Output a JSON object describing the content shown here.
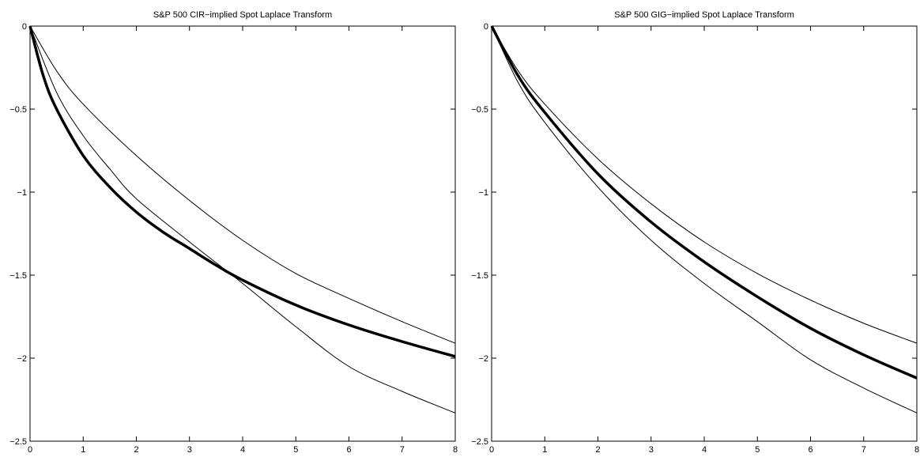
{
  "chart_data": [
    {
      "type": "line",
      "title": "S&P 500 CIR−implied Spot Laplace Transform",
      "xlabel": "",
      "ylabel": "",
      "xlim": [
        0,
        8
      ],
      "ylim": [
        -2.5,
        0
      ],
      "xticks": [
        "0",
        "1",
        "2",
        "3",
        "4",
        "5",
        "6",
        "7",
        "8"
      ],
      "yticks": [
        "0",
        "−0.5",
        "−1",
        "−1.5",
        "−2",
        "−2.5"
      ],
      "grid": false,
      "series": [
        {
          "role": "main",
          "x": [
            0,
            0.25,
            0.5,
            1,
            1.5,
            2,
            2.5,
            3,
            3.5,
            4,
            5,
            6,
            7,
            8
          ],
          "y": [
            0,
            -0.3,
            -0.5,
            -0.78,
            -0.97,
            -1.12,
            -1.24,
            -1.34,
            -1.44,
            -1.53,
            -1.68,
            -1.8,
            -1.9,
            -1.99
          ]
        },
        {
          "role": "band",
          "x": [
            0,
            0.5,
            1,
            2,
            3,
            4,
            5,
            6,
            7,
            8
          ],
          "y": [
            0,
            -0.27,
            -0.47,
            -0.78,
            -1.05,
            -1.29,
            -1.49,
            -1.64,
            -1.78,
            -1.91
          ]
        },
        {
          "role": "band",
          "x": [
            0,
            0.5,
            1,
            1.5,
            2,
            3,
            4,
            5,
            6,
            7,
            8
          ],
          "y": [
            0,
            -0.4,
            -0.66,
            -0.86,
            -1.04,
            -1.3,
            -1.55,
            -1.81,
            -2.05,
            -2.2,
            -2.33
          ]
        }
      ]
    },
    {
      "type": "line",
      "title": "S&P 500 GIG−implied Spot Laplace Transform",
      "xlabel": "",
      "ylabel": "",
      "xlim": [
        0,
        8
      ],
      "ylim": [
        -2.5,
        0
      ],
      "xticks": [
        "0",
        "1",
        "2",
        "3",
        "4",
        "5",
        "6",
        "7",
        "8"
      ],
      "yticks": [
        "0",
        "−0.5",
        "−1",
        "−1.5",
        "−2",
        "−2.5"
      ],
      "grid": false,
      "series": [
        {
          "role": "main",
          "x": [
            0,
            0.5,
            1,
            2,
            3,
            4,
            5,
            6,
            7,
            8
          ],
          "y": [
            0,
            -0.3,
            -0.52,
            -0.89,
            -1.18,
            -1.42,
            -1.63,
            -1.82,
            -1.98,
            -2.12
          ]
        },
        {
          "role": "band",
          "x": [
            0,
            0.5,
            1,
            2,
            3,
            4,
            5,
            6,
            7,
            8
          ],
          "y": [
            0,
            -0.27,
            -0.47,
            -0.8,
            -1.07,
            -1.3,
            -1.49,
            -1.65,
            -1.79,
            -1.91
          ]
        },
        {
          "role": "band",
          "x": [
            0,
            0.5,
            1,
            2,
            3,
            4,
            5,
            6,
            7,
            8
          ],
          "y": [
            0,
            -0.34,
            -0.58,
            -0.97,
            -1.29,
            -1.55,
            -1.78,
            -2.01,
            -2.18,
            -2.33
          ]
        }
      ]
    }
  ]
}
